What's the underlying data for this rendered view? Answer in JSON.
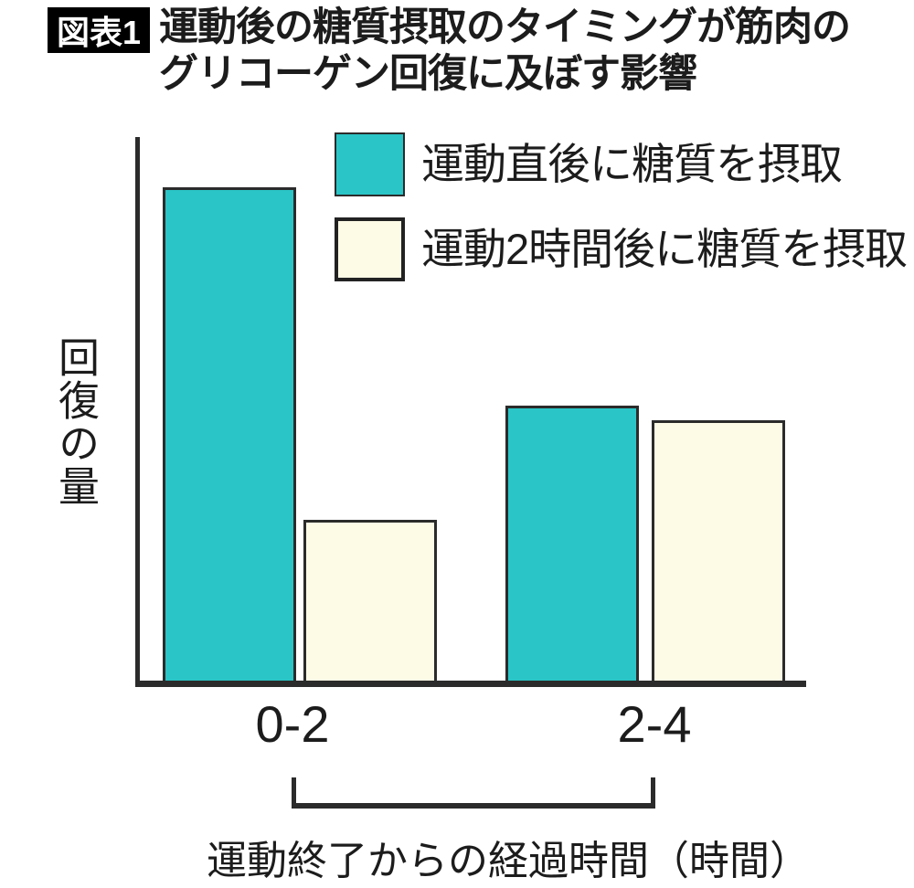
{
  "figure": {
    "badge_label": "図表1",
    "title_line1": "運動後の糖質摂取のタイミングが筋肉の",
    "title_line2": "グリコーゲン回復に及ぼす影響"
  },
  "colors": {
    "immediate_fill": "#2AC5C6",
    "delayed_fill": "#FDFBE6",
    "line": "#2B2B2B",
    "badge_bg": "#000000",
    "badge_text": "#FFFFFF"
  },
  "chart_data": {
    "type": "bar",
    "title": "運動後の糖質摂取のタイミングが筋肉のグリコーゲン回復に及ぼす影響",
    "categories": [
      "0-2",
      "2-4"
    ],
    "series": [
      {
        "key": "immediate",
        "name": "運動直後に糖質を摂取",
        "color": "#2AC5C6",
        "values": [
          100,
          56
        ]
      },
      {
        "key": "after-2h",
        "name": "運動2時間後に糖質を摂取",
        "color": "#FDFBE6",
        "values": [
          33,
          53
        ]
      }
    ],
    "xlabel": "運動終了からの経過時間（時間）",
    "ylabel": "回復の量",
    "ylim": [
      0,
      100
    ],
    "value_scale": "relative, no numeric y-axis shown",
    "grid": false,
    "legend_position": "top-right",
    "annotations": [
      "bracket below tick labels spanning 0-2 to 2-4"
    ]
  }
}
